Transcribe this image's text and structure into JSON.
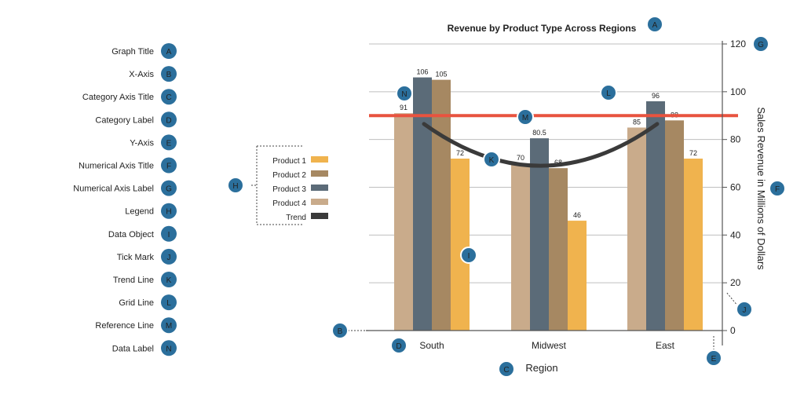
{
  "chart_data": {
    "type": "bar",
    "title": "Revenue by Product Type Across Regions",
    "xlabel": "Region",
    "ylabel": "Sales Revenue in Millions of Dollars",
    "categories": [
      "South",
      "Midwest",
      "East"
    ],
    "series": [
      {
        "name": "Product 4",
        "values": [
          91,
          70,
          85
        ],
        "color": "#c9ab8b"
      },
      {
        "name": "Product 3",
        "values": [
          106,
          80.5,
          96
        ],
        "color": "#5b6b78"
      },
      {
        "name": "Product 2",
        "values": [
          105,
          68,
          88
        ],
        "color": "#a68862"
      },
      {
        "name": "Product 1",
        "values": [
          72,
          46,
          72
        ],
        "color": "#f0b34e"
      }
    ],
    "data_labels": [
      [
        "91",
        "70",
        "85"
      ],
      [
        "106",
        "80.5",
        "96"
      ],
      [
        "105",
        "68",
        "88"
      ],
      [
        "72",
        "46",
        "72"
      ]
    ],
    "yticks": [
      {
        "value": 0,
        "label": "0"
      },
      {
        "value": 20,
        "label": "20"
      },
      {
        "value": 40,
        "label": "40"
      },
      {
        "value": 60,
        "label": "60"
      },
      {
        "value": 80,
        "label": "80"
      },
      {
        "value": 100,
        "label": "100"
      },
      {
        "value": 120,
        "label": "120"
      }
    ],
    "ylim": [
      0,
      120
    ],
    "reference_line": {
      "value": 90,
      "color": "#e8533f"
    },
    "trend": {
      "name": "Trend",
      "values": [
        86.5,
        69,
        86.5
      ],
      "color": "#3a3a3a"
    },
    "legend": {
      "placement": "left",
      "entries": [
        {
          "name": "Product 1",
          "color": "#f0b34e"
        },
        {
          "name": "Product 2",
          "color": "#a68862"
        },
        {
          "name": "Product 3",
          "color": "#5b6b78"
        },
        {
          "name": "Product 4",
          "color": "#c9ab8b"
        },
        {
          "name": "Trend",
          "color": "#3a3a3a"
        }
      ]
    },
    "grid": true,
    "mirrored": true
  },
  "key": [
    {
      "letter": "A",
      "label": "Graph Title"
    },
    {
      "letter": "B",
      "label": "X-Axis"
    },
    {
      "letter": "C",
      "label": "Category Axis Title"
    },
    {
      "letter": "D",
      "label": "Category Label"
    },
    {
      "letter": "E",
      "label": "Y-Axis"
    },
    {
      "letter": "F",
      "label": "Numerical Axis Title"
    },
    {
      "letter": "G",
      "label": "Numerical Axis Label"
    },
    {
      "letter": "H",
      "label": "Legend"
    },
    {
      "letter": "I",
      "label": "Data Object"
    },
    {
      "letter": "J",
      "label": "Tick Mark"
    },
    {
      "letter": "K",
      "label": "Trend Line"
    },
    {
      "letter": "L",
      "label": "Grid Line"
    },
    {
      "letter": "M",
      "label": "Reference Line"
    },
    {
      "letter": "N",
      "label": "Data Label"
    }
  ],
  "badges": [
    "A",
    "B",
    "C",
    "D",
    "E",
    "F",
    "G",
    "H",
    "I",
    "J",
    "K",
    "L",
    "M",
    "N"
  ],
  "badge_color": "#2b6f9c"
}
